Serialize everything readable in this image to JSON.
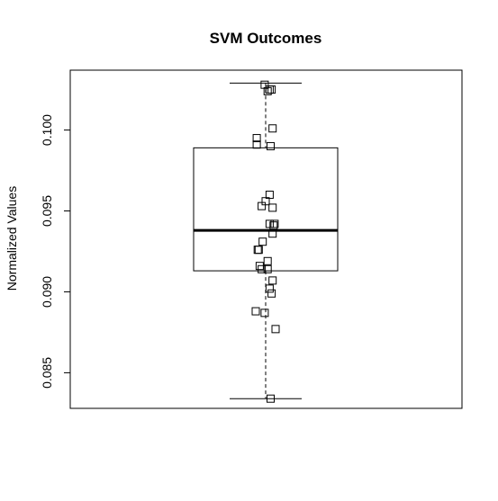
{
  "chart_data": {
    "type": "boxplot",
    "title": "SVM Outcomes",
    "xlabel": "",
    "ylabel": "Normalized Values",
    "ylim": [
      0.0828,
      0.1037
    ],
    "yticks": [
      0.085,
      0.09,
      0.095,
      0.1
    ],
    "ytick_labels": [
      "0.085",
      "0.090",
      "0.095",
      "0.100"
    ],
    "grid": false,
    "box": {
      "whisker_low": 0.0834,
      "q1": 0.0913,
      "median": 0.0938,
      "q3": 0.0989,
      "whisker_high": 0.1029
    },
    "points": [
      {
        "x": 0.99,
        "y": 0.1028
      },
      {
        "x": 1.04,
        "y": 0.1025
      },
      {
        "x": 1.06,
        "y": 0.1025
      },
      {
        "x": 1.02,
        "y": 0.1024
      },
      {
        "x": 1.07,
        "y": 0.1001
      },
      {
        "x": 0.91,
        "y": 0.0995
      },
      {
        "x": 0.91,
        "y": 0.0991
      },
      {
        "x": 1.05,
        "y": 0.099
      },
      {
        "x": 1.04,
        "y": 0.096
      },
      {
        "x": 1.0,
        "y": 0.0956
      },
      {
        "x": 0.96,
        "y": 0.0953
      },
      {
        "x": 1.07,
        "y": 0.0952
      },
      {
        "x": 1.04,
        "y": 0.0942
      },
      {
        "x": 1.09,
        "y": 0.0942
      },
      {
        "x": 1.08,
        "y": 0.0941
      },
      {
        "x": 1.07,
        "y": 0.0936
      },
      {
        "x": 0.97,
        "y": 0.0931
      },
      {
        "x": 0.92,
        "y": 0.0926
      },
      {
        "x": 0.93,
        "y": 0.0926
      },
      {
        "x": 1.02,
        "y": 0.0919
      },
      {
        "x": 0.94,
        "y": 0.0916
      },
      {
        "x": 0.96,
        "y": 0.0914
      },
      {
        "x": 1.02,
        "y": 0.0914
      },
      {
        "x": 1.07,
        "y": 0.0907
      },
      {
        "x": 1.04,
        "y": 0.0902
      },
      {
        "x": 1.06,
        "y": 0.0899
      },
      {
        "x": 0.9,
        "y": 0.0888
      },
      {
        "x": 0.99,
        "y": 0.0887
      },
      {
        "x": 1.1,
        "y": 0.0877
      },
      {
        "x": 1.05,
        "y": 0.0834
      }
    ]
  }
}
